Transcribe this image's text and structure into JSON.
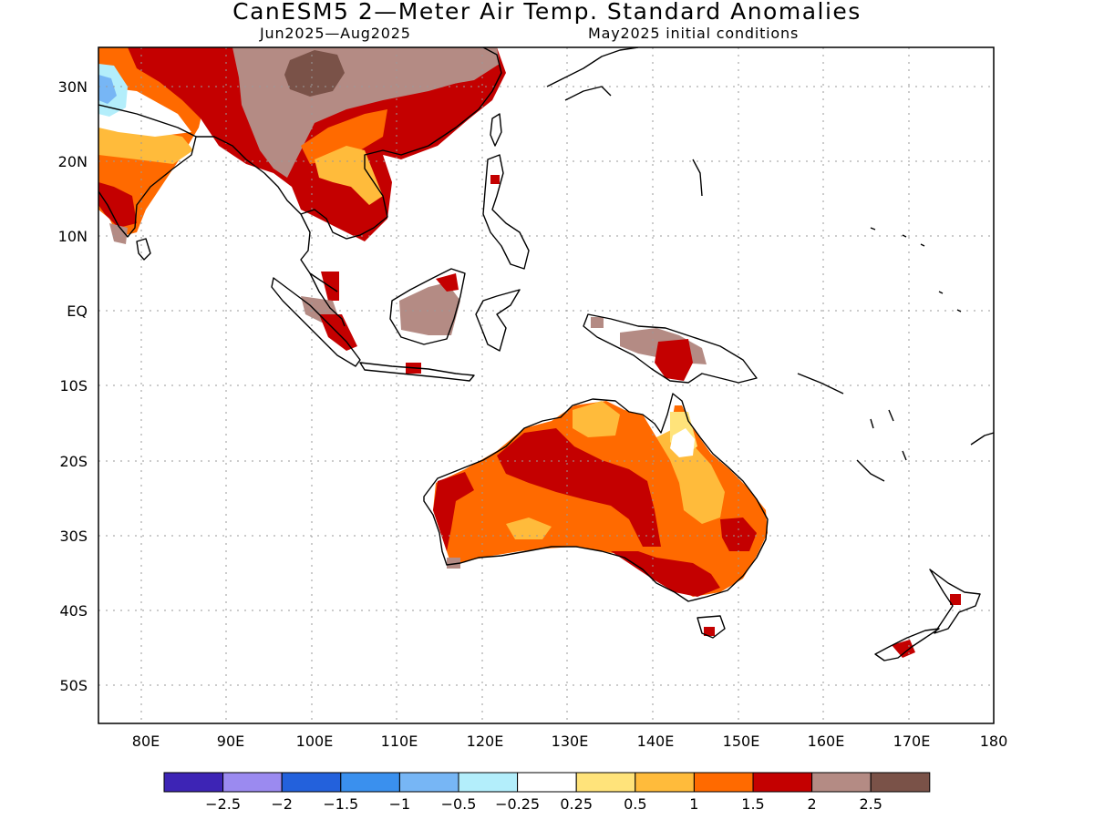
{
  "title": "CanESM5 2—Meter Air Temp. Standard Anomalies",
  "period": "Jun2025—Aug2025",
  "init": "May2025 initial conditions",
  "lat_labels": [
    "30N",
    "20N",
    "10N",
    "EQ",
    "10S",
    "20S",
    "30S",
    "40S",
    "50S"
  ],
  "lon_labels": [
    "80E",
    "90E",
    "100E",
    "110E",
    "120E",
    "130E",
    "140E",
    "150E",
    "160E",
    "170E",
    "180"
  ],
  "extent": {
    "lon": [
      75,
      180
    ],
    "lat": [
      -55,
      35
    ]
  },
  "colorbar": {
    "colors": [
      "#3d24b5",
      "#9b8af0",
      "#2361dc",
      "#3a90ee",
      "#77b6f5",
      "#b3eefb",
      "#ffffff",
      "#ffe37a",
      "#ffbb3b",
      "#ff6a00",
      "#c40000",
      "#b48b84",
      "#7a5248"
    ],
    "labels": [
      "−2.5",
      "−2",
      "−1.5",
      "−1",
      "−0.5",
      "−0.25",
      "0.25",
      "0.5",
      "1",
      "1.5",
      "2",
      "2.5"
    ]
  },
  "colors": {
    "frame": "#000000",
    "grid": "#9a9a9a",
    "coast": "#000000"
  }
}
